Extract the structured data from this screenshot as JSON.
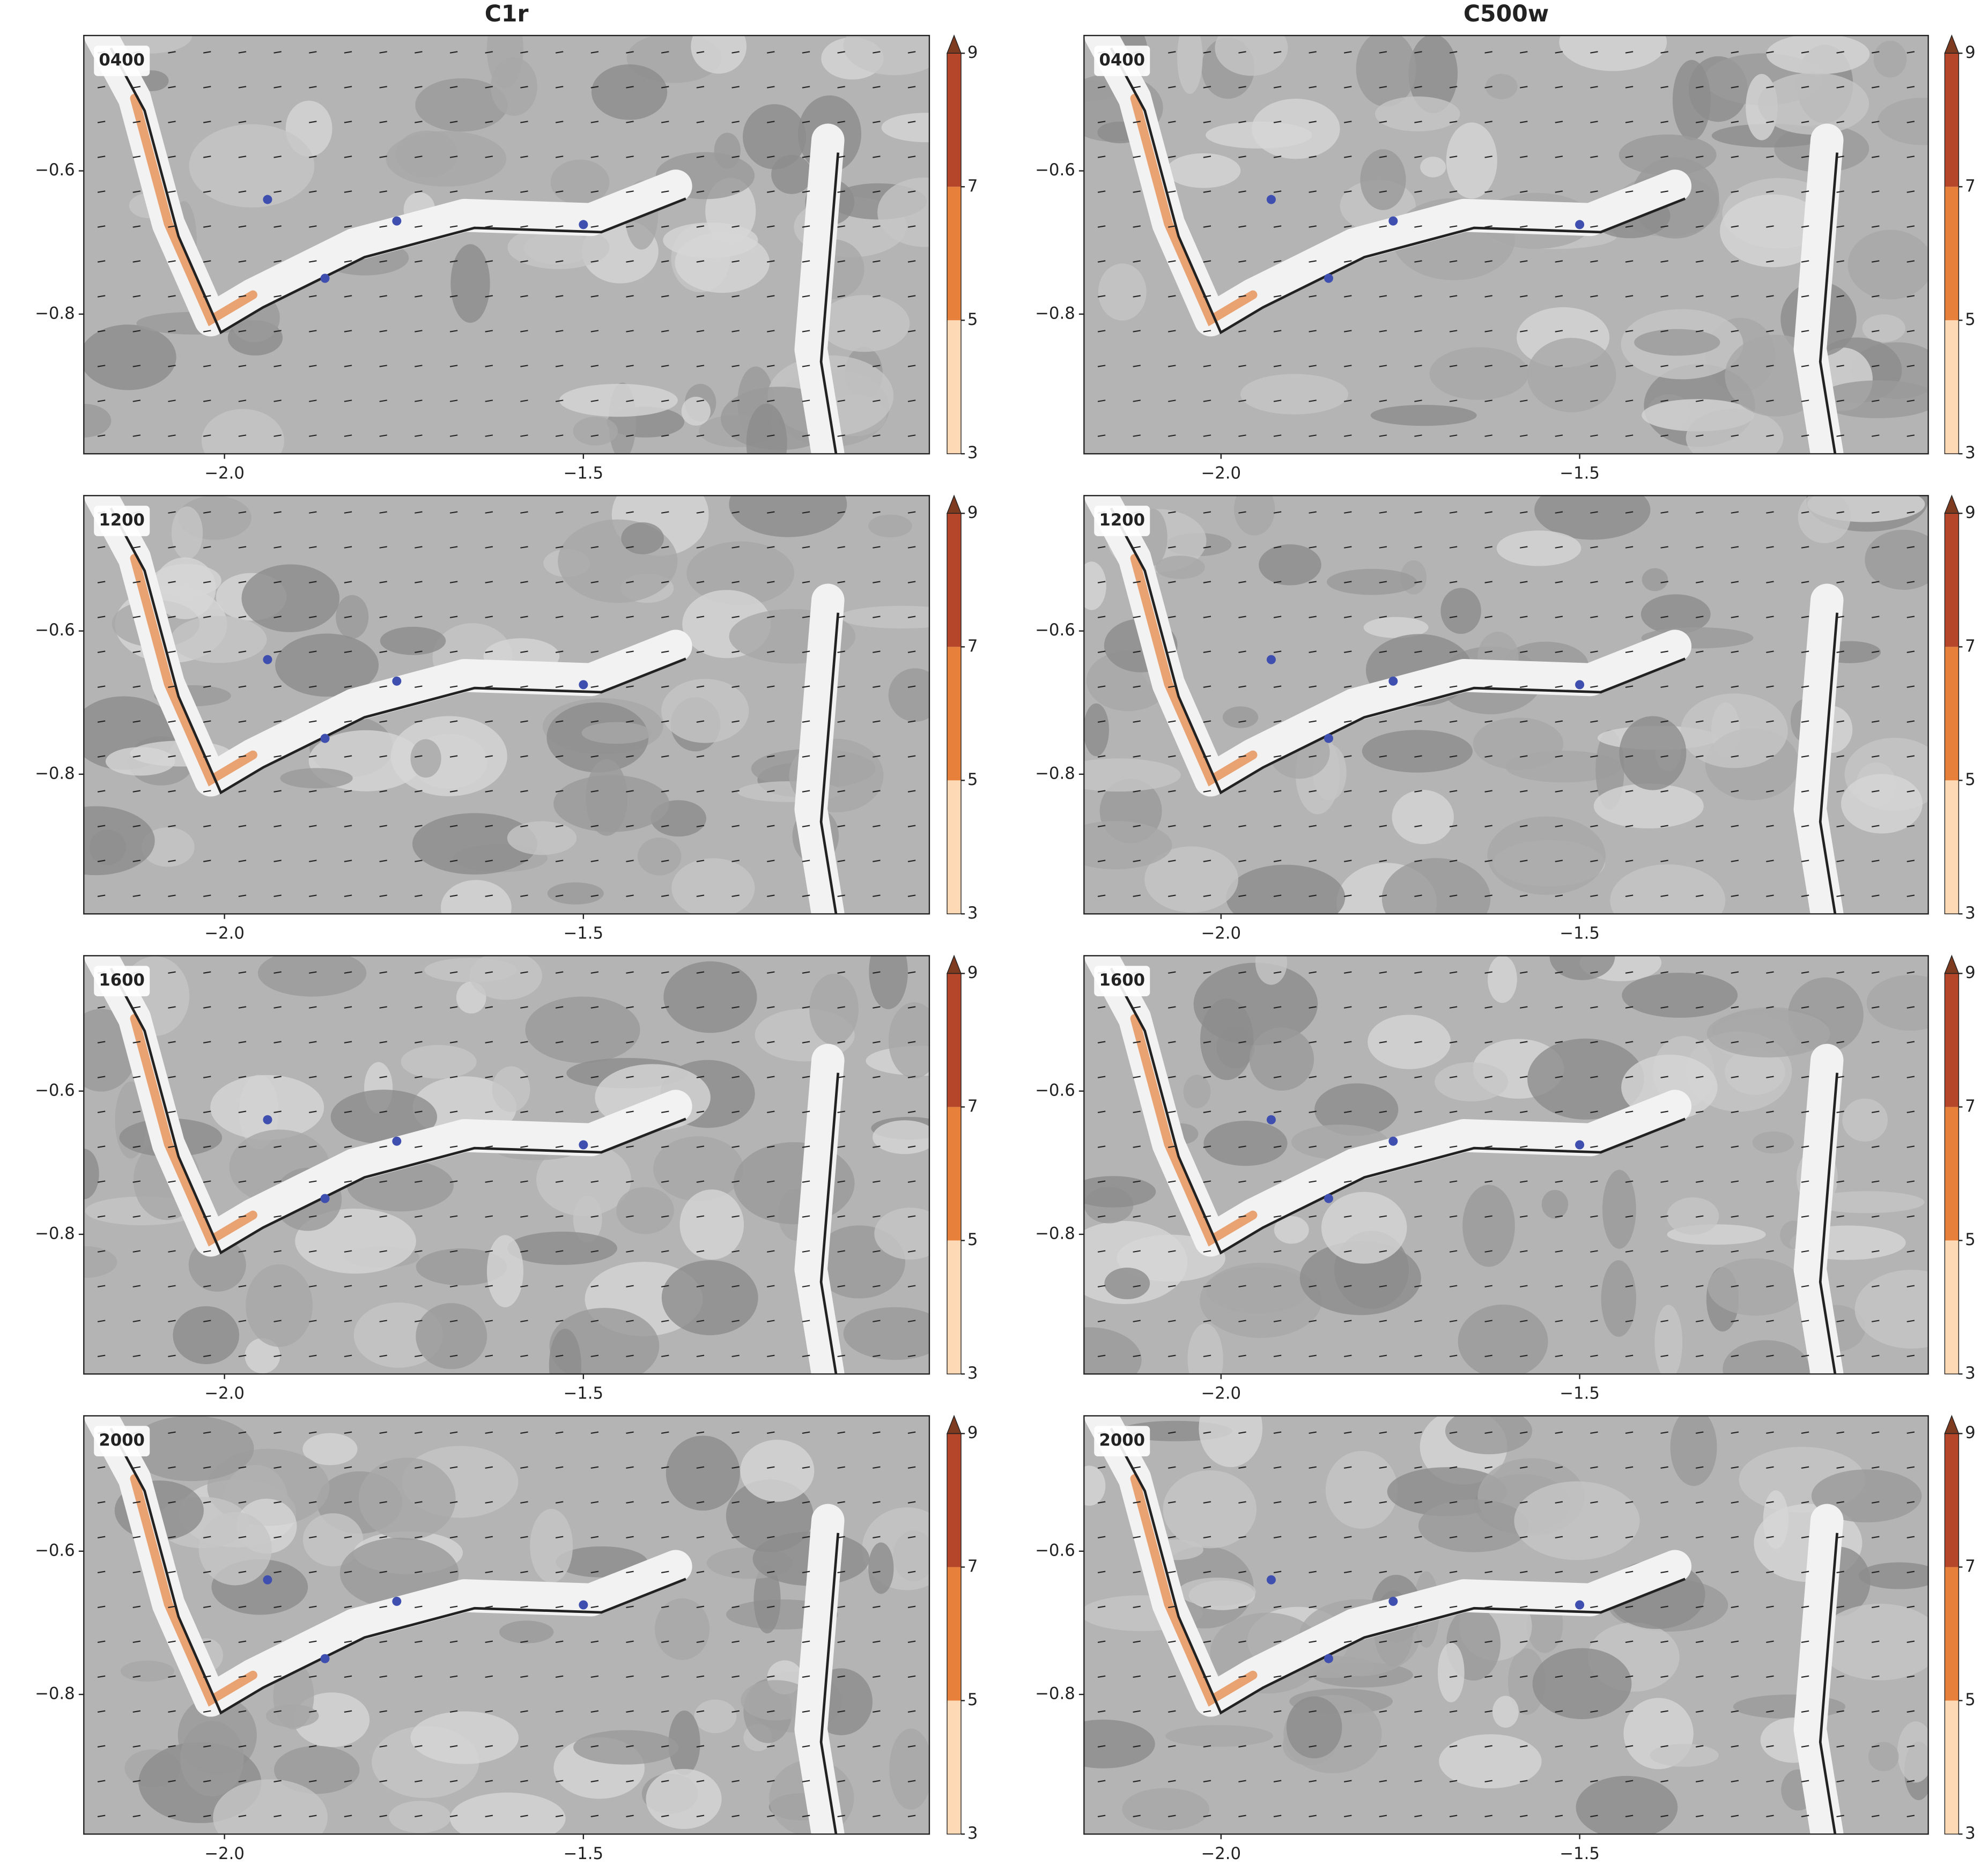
{
  "chart_data": [
    {
      "type": "contour",
      "title": "C1r",
      "annotation": "0400",
      "xlim": [
        -2.196,
        -1.018
      ],
      "ylim": [
        -0.995,
        -0.411
      ],
      "xticks": [
        {
          "value": -2,
          "label": "−2.0"
        },
        {
          "value": -1.5,
          "label": "−1.5"
        }
      ],
      "yticks": [
        {
          "value": -0.8,
          "label": "−0.8"
        },
        {
          "value": -0.6,
          "label": "−0.6"
        }
      ],
      "points": {
        "color": "#3f4fb0",
        "x": [
          -1.94,
          -1.76,
          -1.86,
          -1.5
        ],
        "y": [
          -0.64,
          -0.67,
          -0.75,
          -0.675
        ]
      },
      "colorbar": {
        "ticks": [
          3,
          5,
          7,
          9
        ],
        "colors": [
          "#fdd9b5",
          "#e6803a",
          "#b5462a",
          "#7f3b20"
        ]
      }
    },
    {
      "type": "contour",
      "title": "C500w",
      "annotation": "0400",
      "xlim": [
        -2.191,
        -1.014
      ],
      "ylim": [
        -0.995,
        -0.411
      ],
      "xticks": [
        {
          "value": -2,
          "label": "−2.0"
        },
        {
          "value": -1.5,
          "label": "−1.5"
        }
      ],
      "yticks": [
        {
          "value": -0.8,
          "label": "−0.8"
        },
        {
          "value": -0.6,
          "label": "−0.6"
        }
      ],
      "points": {
        "color": "#3f4fb0",
        "x": [
          -1.93,
          -1.76,
          -1.85,
          -1.5
        ],
        "y": [
          -0.64,
          -0.67,
          -0.75,
          -0.675
        ]
      },
      "colorbar": {
        "ticks": [
          3,
          5,
          7,
          9
        ],
        "colors": [
          "#fdd9b5",
          "#e6803a",
          "#b5462a",
          "#7f3b20"
        ]
      }
    },
    {
      "type": "contour",
      "annotation": "1200",
      "xlim": [
        -2.196,
        -1.018
      ],
      "ylim": [
        -0.995,
        -0.411
      ],
      "xticks": [
        {
          "value": -2,
          "label": "−2.0"
        },
        {
          "value": -1.5,
          "label": "−1.5"
        }
      ],
      "yticks": [
        {
          "value": -0.8,
          "label": "−0.8"
        },
        {
          "value": -0.6,
          "label": "−0.6"
        }
      ],
      "points": {
        "color": "#3f4fb0",
        "x": [
          -1.94,
          -1.76,
          -1.86,
          -1.5
        ],
        "y": [
          -0.64,
          -0.67,
          -0.75,
          -0.675
        ]
      },
      "colorbar": {
        "ticks": [
          3,
          5,
          7,
          9
        ],
        "colors": [
          "#fdd9b5",
          "#e6803a",
          "#b5462a",
          "#7f3b20"
        ]
      }
    },
    {
      "type": "contour",
      "annotation": "1200",
      "xlim": [
        -2.191,
        -1.014
      ],
      "ylim": [
        -0.995,
        -0.411
      ],
      "xticks": [
        {
          "value": -2,
          "label": "−2.0"
        },
        {
          "value": -1.5,
          "label": "−1.5"
        }
      ],
      "yticks": [
        {
          "value": -0.8,
          "label": "−0.8"
        },
        {
          "value": -0.6,
          "label": "−0.6"
        }
      ],
      "points": {
        "color": "#3f4fb0",
        "x": [
          -1.93,
          -1.76,
          -1.85,
          -1.5
        ],
        "y": [
          -0.64,
          -0.67,
          -0.75,
          -0.675
        ]
      },
      "colorbar": {
        "ticks": [
          3,
          5,
          7,
          9
        ],
        "colors": [
          "#fdd9b5",
          "#e6803a",
          "#b5462a",
          "#7f3b20"
        ]
      }
    },
    {
      "type": "contour",
      "annotation": "1600",
      "xlim": [
        -2.196,
        -1.018
      ],
      "ylim": [
        -0.995,
        -0.411
      ],
      "xticks": [
        {
          "value": -2,
          "label": "−2.0"
        },
        {
          "value": -1.5,
          "label": "−1.5"
        }
      ],
      "yticks": [
        {
          "value": -0.8,
          "label": "−0.8"
        },
        {
          "value": -0.6,
          "label": "−0.6"
        }
      ],
      "points": {
        "color": "#3f4fb0",
        "x": [
          -1.94,
          -1.76,
          -1.86,
          -1.5
        ],
        "y": [
          -0.64,
          -0.67,
          -0.75,
          -0.675
        ]
      },
      "colorbar": {
        "ticks": [
          3,
          5,
          7,
          9
        ],
        "colors": [
          "#fdd9b5",
          "#e6803a",
          "#b5462a",
          "#7f3b20"
        ]
      }
    },
    {
      "type": "contour",
      "annotation": "1600",
      "xlim": [
        -2.191,
        -1.014
      ],
      "ylim": [
        -0.995,
        -0.411
      ],
      "xticks": [
        {
          "value": -2,
          "label": "−2.0"
        },
        {
          "value": -1.5,
          "label": "−1.5"
        }
      ],
      "yticks": [
        {
          "value": -0.8,
          "label": "−0.8"
        },
        {
          "value": -0.6,
          "label": "−0.6"
        }
      ],
      "points": {
        "color": "#3f4fb0",
        "x": [
          -1.93,
          -1.76,
          -1.85,
          -1.5
        ],
        "y": [
          -0.64,
          -0.67,
          -0.75,
          -0.675
        ]
      },
      "colorbar": {
        "ticks": [
          3,
          5,
          7,
          9
        ],
        "colors": [
          "#fdd9b5",
          "#e6803a",
          "#b5462a",
          "#7f3b20"
        ]
      }
    },
    {
      "type": "contour",
      "annotation": "2000",
      "xlim": [
        -2.196,
        -1.018
      ],
      "ylim": [
        -0.995,
        -0.411
      ],
      "xticks": [
        {
          "value": -2,
          "label": "−2.0"
        },
        {
          "value": -1.5,
          "label": "−1.5"
        }
      ],
      "yticks": [
        {
          "value": -0.8,
          "label": "−0.8"
        },
        {
          "value": -0.6,
          "label": "−0.6"
        }
      ],
      "points": {
        "color": "#3f4fb0",
        "x": [
          -1.94,
          -1.76,
          -1.86,
          -1.5
        ],
        "y": [
          -0.64,
          -0.67,
          -0.75,
          -0.675
        ]
      },
      "colorbar": {
        "ticks": [
          3,
          5,
          7,
          9
        ],
        "colors": [
          "#fdd9b5",
          "#e6803a",
          "#b5462a",
          "#7f3b20"
        ]
      }
    },
    {
      "type": "contour",
      "annotation": "2000",
      "xlim": [
        -2.191,
        -1.014
      ],
      "ylim": [
        -0.995,
        -0.411
      ],
      "xticks": [
        {
          "value": -2,
          "label": "−2.0"
        },
        {
          "value": -1.5,
          "label": "−1.5"
        }
      ],
      "yticks": [
        {
          "value": -0.8,
          "label": "−0.8"
        },
        {
          "value": -0.6,
          "label": "−0.6"
        }
      ],
      "points": {
        "color": "#3f4fb0",
        "x": [
          -1.93,
          -1.76,
          -1.85,
          -1.5
        ],
        "y": [
          -0.64,
          -0.67,
          -0.75,
          -0.675
        ]
      },
      "colorbar": {
        "ticks": [
          3,
          5,
          7,
          9
        ],
        "colors": [
          "#fdd9b5",
          "#e6803a",
          "#b5462a",
          "#7f3b20"
        ]
      }
    }
  ]
}
